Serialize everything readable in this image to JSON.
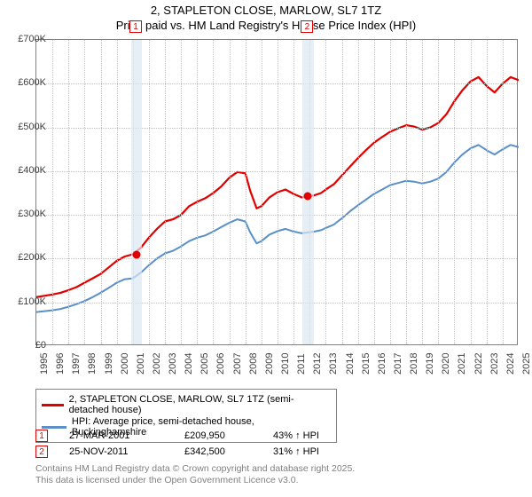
{
  "title": {
    "line1": "2, STAPLETON CLOSE, MARLOW, SL7 1TZ",
    "line2": "Price paid vs. HM Land Registry's House Price Index (HPI)"
  },
  "chart": {
    "type": "line",
    "x_min": 1995,
    "x_max": 2025,
    "y_min": 0,
    "y_max": 700000,
    "y_ticks": [
      0,
      100000,
      200000,
      300000,
      400000,
      500000,
      600000,
      700000
    ],
    "y_tick_labels": [
      "£0",
      "£100K",
      "£200K",
      "£300K",
      "£400K",
      "£500K",
      "£600K",
      "£700K"
    ],
    "x_ticks": [
      1995,
      1996,
      1997,
      1998,
      1999,
      2000,
      2001,
      2002,
      2003,
      2004,
      2005,
      2006,
      2007,
      2008,
      2009,
      2010,
      2011,
      2012,
      2013,
      2014,
      2015,
      2016,
      2017,
      2018,
      2019,
      2020,
      2021,
      2022,
      2023,
      2024,
      2025
    ],
    "background_color": "#ffffff",
    "grid_color": "#c0c0c0",
    "axis_color": "#808080",
    "band_color": "#dce7f2",
    "title_fontsize": 13,
    "axis_label_fontsize": 11,
    "series": [
      {
        "name": "price_paid",
        "label": "2, STAPLETON CLOSE, MARLOW, SL7 1TZ (semi-detached house)",
        "color": "#e00000",
        "line_width": 2.2,
        "data": [
          [
            1995,
            112000
          ],
          [
            1995.5,
            115000
          ],
          [
            1996,
            118000
          ],
          [
            1996.5,
            122000
          ],
          [
            1997,
            128000
          ],
          [
            1997.5,
            135000
          ],
          [
            1998,
            145000
          ],
          [
            1998.5,
            155000
          ],
          [
            1999,
            165000
          ],
          [
            1999.5,
            180000
          ],
          [
            2000,
            195000
          ],
          [
            2000.5,
            205000
          ],
          [
            2001,
            209950
          ],
          [
            2001.5,
            225000
          ],
          [
            2002,
            248000
          ],
          [
            2002.5,
            268000
          ],
          [
            2003,
            285000
          ],
          [
            2003.5,
            290000
          ],
          [
            2004,
            300000
          ],
          [
            2004.5,
            320000
          ],
          [
            2005,
            330000
          ],
          [
            2005.5,
            338000
          ],
          [
            2006,
            350000
          ],
          [
            2006.5,
            365000
          ],
          [
            2007,
            385000
          ],
          [
            2007.5,
            398000
          ],
          [
            2008,
            395000
          ],
          [
            2008.3,
            355000
          ],
          [
            2008.7,
            315000
          ],
          [
            2009,
            320000
          ],
          [
            2009.5,
            340000
          ],
          [
            2010,
            352000
          ],
          [
            2010.5,
            358000
          ],
          [
            2011,
            348000
          ],
          [
            2011.5,
            340000
          ],
          [
            2011.9,
            342500
          ],
          [
            2012.3,
            345000
          ],
          [
            2012.7,
            350000
          ],
          [
            2013,
            358000
          ],
          [
            2013.5,
            370000
          ],
          [
            2014,
            390000
          ],
          [
            2014.5,
            410000
          ],
          [
            2015,
            430000
          ],
          [
            2015.5,
            448000
          ],
          [
            2016,
            465000
          ],
          [
            2016.5,
            478000
          ],
          [
            2017,
            490000
          ],
          [
            2017.5,
            498000
          ],
          [
            2018,
            505000
          ],
          [
            2018.5,
            502000
          ],
          [
            2019,
            495000
          ],
          [
            2019.5,
            500000
          ],
          [
            2020,
            510000
          ],
          [
            2020.5,
            530000
          ],
          [
            2021,
            560000
          ],
          [
            2021.5,
            585000
          ],
          [
            2022,
            605000
          ],
          [
            2022.5,
            615000
          ],
          [
            2023,
            595000
          ],
          [
            2023.5,
            580000
          ],
          [
            2024,
            600000
          ],
          [
            2024.5,
            615000
          ],
          [
            2025,
            608000
          ]
        ]
      },
      {
        "name": "hpi",
        "label": "HPI: Average price, semi-detached house, Buckinghamshire",
        "color": "#5b8fc7",
        "line_width": 2.0,
        "data": [
          [
            1995,
            78000
          ],
          [
            1995.5,
            80000
          ],
          [
            1996,
            82000
          ],
          [
            1996.5,
            85000
          ],
          [
            1997,
            90000
          ],
          [
            1997.5,
            96000
          ],
          [
            1998,
            103000
          ],
          [
            1998.5,
            112000
          ],
          [
            1999,
            122000
          ],
          [
            1999.5,
            133000
          ],
          [
            2000,
            145000
          ],
          [
            2000.5,
            153000
          ],
          [
            2001,
            155000
          ],
          [
            2001.5,
            168000
          ],
          [
            2002,
            185000
          ],
          [
            2002.5,
            200000
          ],
          [
            2003,
            212000
          ],
          [
            2003.5,
            218000
          ],
          [
            2004,
            228000
          ],
          [
            2004.5,
            240000
          ],
          [
            2005,
            248000
          ],
          [
            2005.5,
            253000
          ],
          [
            2006,
            262000
          ],
          [
            2006.5,
            272000
          ],
          [
            2007,
            282000
          ],
          [
            2007.5,
            290000
          ],
          [
            2008,
            285000
          ],
          [
            2008.3,
            260000
          ],
          [
            2008.7,
            235000
          ],
          [
            2009,
            240000
          ],
          [
            2009.5,
            255000
          ],
          [
            2010,
            263000
          ],
          [
            2010.5,
            268000
          ],
          [
            2011,
            262000
          ],
          [
            2011.5,
            258000
          ],
          [
            2011.9,
            260000
          ],
          [
            2012.3,
            262000
          ],
          [
            2012.7,
            265000
          ],
          [
            2013,
            270000
          ],
          [
            2013.5,
            278000
          ],
          [
            2014,
            292000
          ],
          [
            2014.5,
            308000
          ],
          [
            2015,
            322000
          ],
          [
            2015.5,
            335000
          ],
          [
            2016,
            348000
          ],
          [
            2016.5,
            358000
          ],
          [
            2017,
            368000
          ],
          [
            2017.5,
            373000
          ],
          [
            2018,
            378000
          ],
          [
            2018.5,
            376000
          ],
          [
            2019,
            372000
          ],
          [
            2019.5,
            376000
          ],
          [
            2020,
            383000
          ],
          [
            2020.5,
            398000
          ],
          [
            2021,
            420000
          ],
          [
            2021.5,
            438000
          ],
          [
            2022,
            452000
          ],
          [
            2022.5,
            460000
          ],
          [
            2023,
            448000
          ],
          [
            2023.5,
            438000
          ],
          [
            2024,
            450000
          ],
          [
            2024.5,
            460000
          ],
          [
            2025,
            455000
          ]
        ]
      }
    ],
    "sale_points": [
      {
        "marker": "1",
        "x": 2001.23,
        "y": 209950
      },
      {
        "marker": "2",
        "x": 2011.9,
        "y": 342500
      }
    ],
    "sale_bands": [
      {
        "x_start": 2000.9,
        "x_end": 2001.55
      },
      {
        "x_start": 2011.55,
        "x_end": 2012.25
      }
    ]
  },
  "legend": {
    "items": [
      {
        "color": "#e00000",
        "label": "2, STAPLETON CLOSE, MARLOW, SL7 1TZ (semi-detached house)"
      },
      {
        "color": "#5b8fc7",
        "label": "HPI: Average price, semi-detached house, Buckinghamshire"
      }
    ]
  },
  "sales_table": {
    "rows": [
      {
        "marker": "1",
        "date": "27-MAR-2001",
        "price": "£209,950",
        "delta": "43% ↑ HPI"
      },
      {
        "marker": "2",
        "date": "25-NOV-2011",
        "price": "£342,500",
        "delta": "31% ↑ HPI"
      }
    ]
  },
  "footer": {
    "line1": "Contains HM Land Registry data © Crown copyright and database right 2025.",
    "line2": "This data is licensed under the Open Government Licence v3.0."
  }
}
